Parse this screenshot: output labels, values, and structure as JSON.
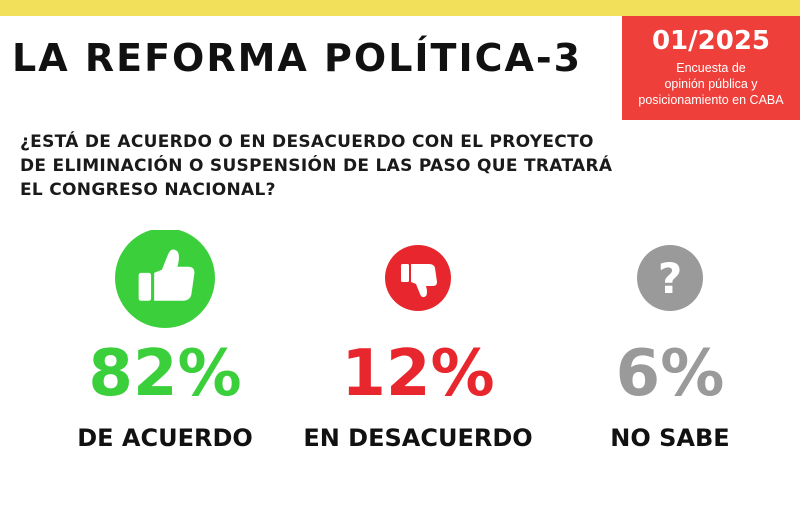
{
  "header": {
    "title": "LA REFORMA POLÍTICA-3",
    "badge": {
      "date": "01/2025",
      "line1": "Encuesta de",
      "line2": "opinión pública y",
      "line3": "posicionamiento en CABA"
    }
  },
  "question": {
    "line1": "¿ESTÁ DE ACUERDO O EN DESACUERDO CON EL PROYECTO",
    "line2": "DE ELIMINACIÓN O SUSPENSIÓN DE LAS PASO QUE TRATARÁ",
    "line3": "EL CONGRESO NACIONAL?"
  },
  "colors": {
    "accent_yellow": "#f2e05a",
    "badge_red": "#ee3f3a",
    "agree": "#3ccf3c",
    "disagree": "#e8262d",
    "unknown": "#9a9a9a"
  },
  "chart_data": {
    "type": "pictogram",
    "categories": [
      "DE ACUERDO",
      "EN DESACUERDO",
      "NO SABE"
    ],
    "values": [
      82,
      12,
      6
    ],
    "value_labels": [
      "82%",
      "12%",
      "6%"
    ],
    "icons": [
      "thumbs-up-icon",
      "thumbs-down-icon",
      "question-mark-icon"
    ],
    "colors": [
      "#3ccf3c",
      "#e8262d",
      "#9a9a9a"
    ],
    "unit": "%"
  }
}
